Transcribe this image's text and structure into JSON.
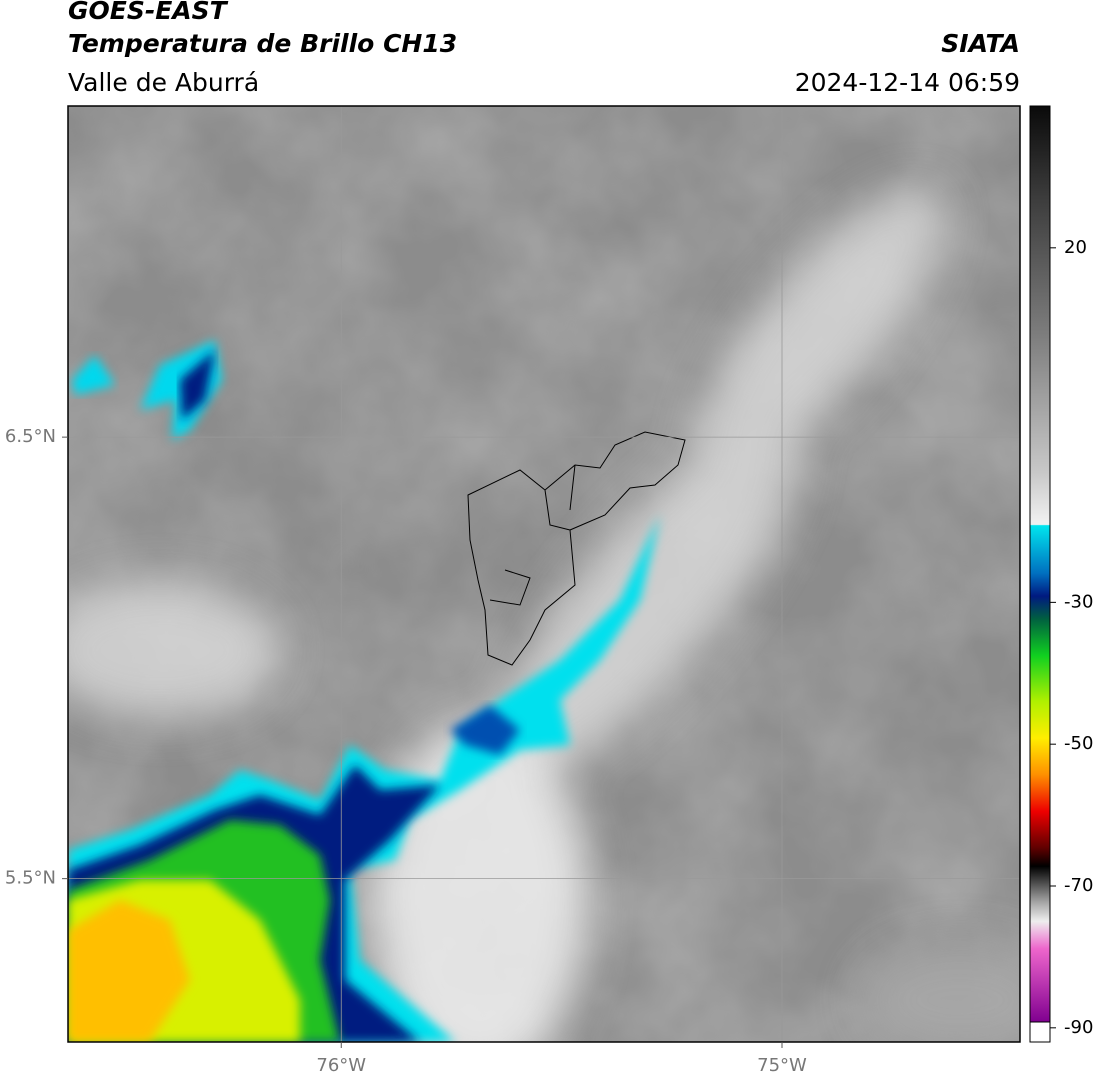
{
  "header": {
    "title": "GOES-EAST",
    "subtitle": "Temperatura de Brillo CH13",
    "region": "Valle de Aburrá",
    "source": "SIATA",
    "datetime": "2024-12-14 06:59"
  },
  "map": {
    "xlim": [
      -76.62,
      -74.46
    ],
    "ylim": [
      5.13,
      7.25
    ],
    "xticks": [
      {
        "value": -76,
        "label": "76°W"
      },
      {
        "value": -75,
        "label": "75°W"
      }
    ],
    "yticks": [
      {
        "value": 6.5,
        "label": "6.5°N"
      },
      {
        "value": 5.5,
        "label": "5.5°N"
      }
    ],
    "grid": true
  },
  "colorbar": {
    "lim": [
      -92,
      40
    ],
    "ticks": [
      20,
      -30,
      -50,
      -70,
      -90
    ]
  }
}
